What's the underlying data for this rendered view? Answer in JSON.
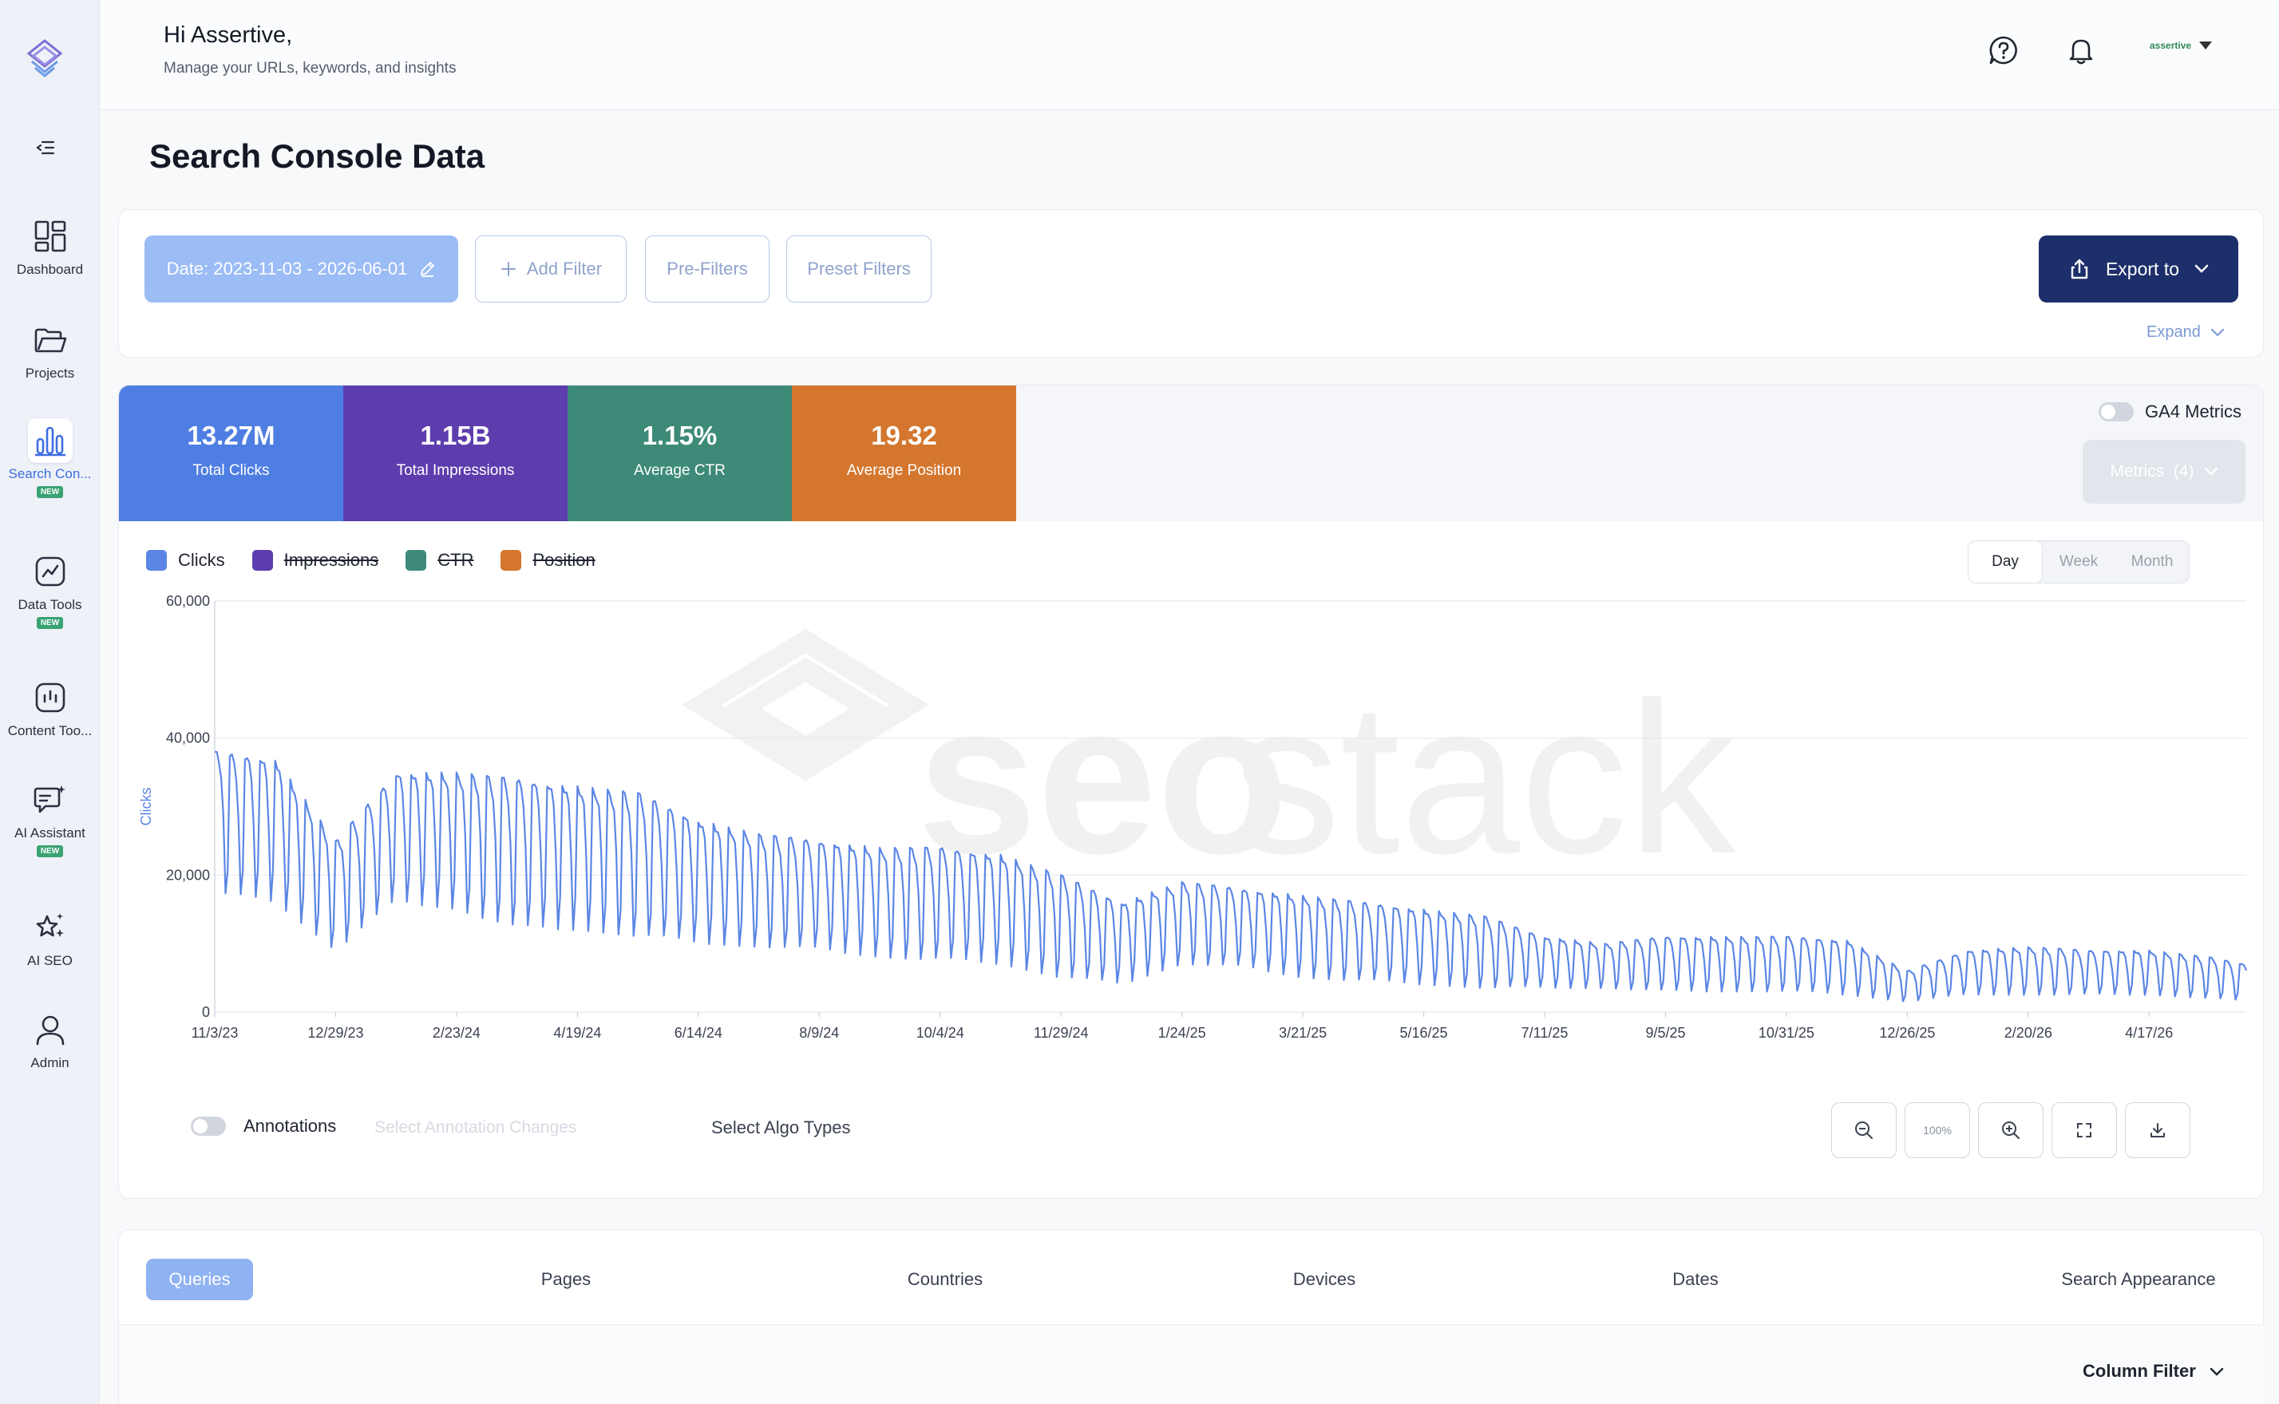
{
  "header": {
    "greeting": "Hi Assertive,",
    "subtitle": "Manage your URLs, keywords, and insights",
    "account_name": "assertive"
  },
  "sidebar": {
    "items": [
      {
        "label": "Dashboard",
        "icon": "dashboard-icon",
        "badge": ""
      },
      {
        "label": "Projects",
        "icon": "folder-icon",
        "badge": ""
      },
      {
        "label": "Search Con...",
        "icon": "bar-chart-icon",
        "badge": "NEW",
        "active": true
      },
      {
        "label": "Data Tools",
        "icon": "line-chart-icon",
        "badge": "NEW"
      },
      {
        "label": "Content Too...",
        "icon": "audio-bars-icon",
        "badge": ""
      },
      {
        "label": "AI Assistant",
        "icon": "chat-sparkle-icon",
        "badge": "NEW"
      },
      {
        "label": "AI SEO",
        "icon": "stars-icon",
        "badge": ""
      },
      {
        "label": "Admin",
        "icon": "user-icon",
        "badge": ""
      }
    ]
  },
  "page_title": "Search Console Data",
  "filters": {
    "date_label": "Date: 2023-11-03 - 2026-06-01",
    "add_filter": "Add Filter",
    "pre_filters": "Pre-Filters",
    "preset_filters": "Preset Filters",
    "export": "Export to",
    "expand": "Expand"
  },
  "metrics": [
    {
      "value": "13.27M",
      "label": "Total Clicks",
      "color": "#4f7ee3"
    },
    {
      "value": "1.15B",
      "label": "Total Impressions",
      "color": "#5d3dad"
    },
    {
      "value": "1.15%",
      "label": "Average CTR",
      "color": "#3d8a78"
    },
    {
      "value": "19.32",
      "label": "Average Position",
      "color": "#d4762e"
    }
  ],
  "ga4_label": "GA4 Metrics",
  "metrics_dropdown": "Metrics  (4)",
  "legend": [
    {
      "label": "Clicks",
      "color": "#5b86e5",
      "active": true
    },
    {
      "label": "Impressions",
      "color": "#5d3dad",
      "active": false
    },
    {
      "label": "CTR",
      "color": "#3d8a78",
      "active": false
    },
    {
      "label": "Position",
      "color": "#d4762e",
      "active": false
    }
  ],
  "period": {
    "day": "Day",
    "week": "Week",
    "month": "Month"
  },
  "watermark": {
    "bold": "seo",
    "light": "stack"
  },
  "chart_data": {
    "type": "line",
    "ylabel": "Clicks",
    "ylim": [
      0,
      60000
    ],
    "yticks": [
      "0",
      "20,000",
      "40,000",
      "60,000"
    ],
    "xticks": [
      "11/3/23",
      "12/29/23",
      "2/23/24",
      "4/19/24",
      "6/14/24",
      "8/9/24",
      "10/4/24",
      "11/29/24",
      "1/24/25",
      "3/21/25",
      "5/16/25",
      "7/11/25",
      "9/5/25",
      "10/31/25",
      "12/26/25",
      "2/20/26",
      "4/17/26"
    ],
    "x_start": "2023-11-03",
    "x_end": "2026-06-01",
    "series": [
      {
        "name": "Clicks",
        "color": "#5b86e5",
        "weekly_trend": {
          "dates": [
            "2023-11-03",
            "2023-12-01",
            "2023-12-29",
            "2024-01-26",
            "2024-02-23",
            "2024-03-22",
            "2024-04-19",
            "2024-05-17",
            "2024-06-14",
            "2024-07-12",
            "2024-08-09",
            "2024-09-06",
            "2024-10-04",
            "2024-11-01",
            "2024-11-29",
            "2024-12-27",
            "2025-01-24",
            "2025-02-21",
            "2025-03-21",
            "2025-04-18",
            "2025-05-16",
            "2025-06-13",
            "2025-07-11",
            "2025-08-08",
            "2025-09-05",
            "2025-10-03",
            "2025-10-31",
            "2025-11-28",
            "2025-12-26",
            "2026-01-23",
            "2026-02-20",
            "2026-03-20",
            "2026-04-17",
            "2026-05-15",
            "2026-06-01"
          ],
          "high": [
            38000,
            37000,
            25000,
            35000,
            35000,
            34000,
            33000,
            32000,
            28000,
            26000,
            25000,
            24000,
            24000,
            23000,
            20000,
            16000,
            19000,
            18000,
            17000,
            16000,
            15000,
            14000,
            11000,
            10000,
            11000,
            11000,
            11000,
            10500,
            6000,
            9000,
            9500,
            9000,
            9000,
            8000,
            7000
          ],
          "low": [
            17000,
            16000,
            9000,
            16000,
            15000,
            12000,
            12000,
            11000,
            10000,
            9500,
            9000,
            8000,
            7500,
            7000,
            5000,
            4000,
            7000,
            6500,
            5000,
            4500,
            4000,
            3500,
            3500,
            3500,
            3000,
            3000,
            3000,
            2500,
            1500,
            2500,
            2500,
            2500,
            2500,
            2000,
            1500
          ]
        }
      }
    ]
  },
  "annotations": {
    "label": "Annotations",
    "select_changes": "Select Annotation Changes",
    "select_algo": "Select Algo Types"
  },
  "zoom": {
    "level": "100%"
  },
  "tabs": [
    "Queries",
    "Pages",
    "Countries",
    "Devices",
    "Dates",
    "Search Appearance"
  ],
  "column_filter": "Column Filter"
}
